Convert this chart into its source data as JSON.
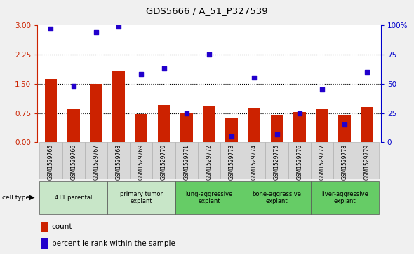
{
  "title": "GDS5666 / A_51_P327539",
  "samples": [
    "GSM1529765",
    "GSM1529766",
    "GSM1529767",
    "GSM1529768",
    "GSM1529769",
    "GSM1529770",
    "GSM1529771",
    "GSM1529772",
    "GSM1529773",
    "GSM1529774",
    "GSM1529775",
    "GSM1529776",
    "GSM1529777",
    "GSM1529778",
    "GSM1529779"
  ],
  "bar_values": [
    1.62,
    0.85,
    1.5,
    1.82,
    0.72,
    0.95,
    0.76,
    0.92,
    0.62,
    0.88,
    0.68,
    0.78,
    0.85,
    0.7,
    0.9
  ],
  "percentile_values": [
    97,
    48,
    94,
    99,
    58,
    63,
    25,
    75,
    5,
    55,
    7,
    25,
    45,
    15,
    60
  ],
  "cell_types": [
    {
      "label": "4T1 parental",
      "start": 0,
      "end": 3,
      "color": "#c8e6c8"
    },
    {
      "label": "primary tumor\nexplant",
      "start": 3,
      "end": 6,
      "color": "#c8e6c8"
    },
    {
      "label": "lung-aggressive\nexplant",
      "start": 6,
      "end": 9,
      "color": "#66cc66"
    },
    {
      "label": "bone-aggressive\nexplant",
      "start": 9,
      "end": 12,
      "color": "#66cc66"
    },
    {
      "label": "liver-aggressive\nexplant",
      "start": 12,
      "end": 15,
      "color": "#66cc66"
    }
  ],
  "ylim_left": [
    0,
    3
  ],
  "ylim_right": [
    0,
    100
  ],
  "yticks_left": [
    0,
    0.75,
    1.5,
    2.25,
    3
  ],
  "yticks_right": [
    0,
    25,
    50,
    75,
    100
  ],
  "bar_color": "#cc2200",
  "dot_color": "#2200cc",
  "left_axis_color": "#cc2200",
  "right_axis_color": "#0000cc",
  "fig_bg": "#f0f0f0",
  "plot_bg": "#ffffff"
}
